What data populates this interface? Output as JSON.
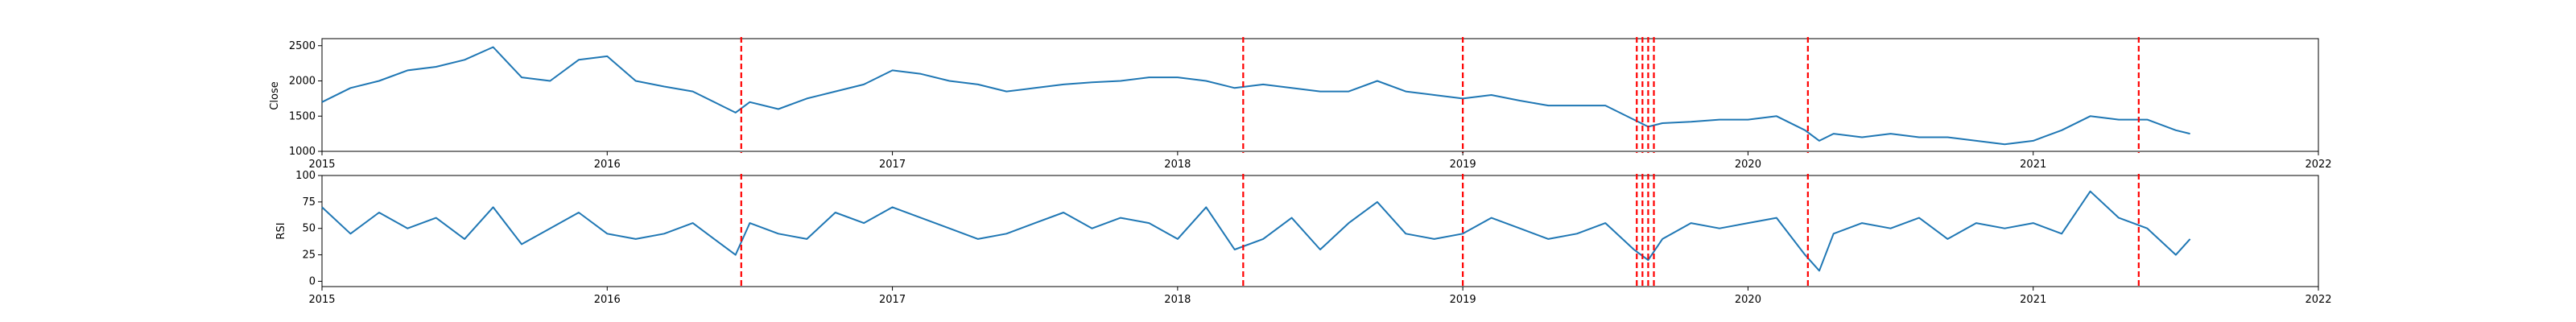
{
  "chart_data": [
    {
      "type": "line",
      "title": "",
      "xlabel": "",
      "ylabel": "Close",
      "xlim": [
        2015.0,
        2022.0
      ],
      "ylim": [
        1000,
        2600
      ],
      "x_ticks": [
        "2015",
        "2016",
        "2017",
        "2018",
        "2019",
        "2020",
        "2021",
        "2022"
      ],
      "y_ticks": [
        1000,
        1500,
        2000,
        2500
      ],
      "series": [
        {
          "color": "#1f77b4",
          "x": [
            2015.0,
            2015.1,
            2015.2,
            2015.3,
            2015.4,
            2015.5,
            2015.6,
            2015.7,
            2015.8,
            2015.9,
            2016.0,
            2016.1,
            2016.2,
            2016.3,
            2016.4,
            2016.45,
            2016.5,
            2016.6,
            2016.7,
            2016.8,
            2016.9,
            2017.0,
            2017.1,
            2017.2,
            2017.3,
            2017.4,
            2017.5,
            2017.6,
            2017.7,
            2017.8,
            2017.9,
            2018.0,
            2018.1,
            2018.2,
            2018.3,
            2018.4,
            2018.5,
            2018.6,
            2018.7,
            2018.8,
            2018.9,
            2019.0,
            2019.1,
            2019.2,
            2019.3,
            2019.4,
            2019.5,
            2019.6,
            2019.65,
            2019.7,
            2019.8,
            2019.9,
            2020.0,
            2020.1,
            2020.2,
            2020.25,
            2020.3,
            2020.4,
            2020.5,
            2020.6,
            2020.7,
            2020.8,
            2020.9,
            2021.0,
            2021.1,
            2021.2,
            2021.3,
            2021.4,
            2021.5,
            2021.55
          ],
          "y": [
            1700,
            1900,
            2000,
            2150,
            2200,
            2300,
            2480,
            2050,
            2000,
            2300,
            2350,
            2000,
            1920,
            1850,
            1650,
            1550,
            1700,
            1600,
            1750,
            1850,
            1950,
            2150,
            2100,
            2000,
            1950,
            1850,
            1900,
            1950,
            1980,
            2000,
            2050,
            2050,
            2000,
            1900,
            1950,
            1900,
            1850,
            1850,
            2000,
            1850,
            1800,
            1750,
            1800,
            1720,
            1650,
            1650,
            1650,
            1450,
            1350,
            1400,
            1420,
            1450,
            1450,
            1500,
            1300,
            1150,
            1250,
            1200,
            1250,
            1200,
            1200,
            1150,
            1100,
            1150,
            1300,
            1500,
            1450,
            1450,
            1300,
            1250
          ]
        }
      ],
      "vlines": {
        "color": "#ff0000",
        "style": "dashed",
        "x": [
          2016.47,
          2018.23,
          2019.0,
          2019.61,
          2019.63,
          2019.65,
          2019.67,
          2020.21,
          2021.37
        ]
      }
    },
    {
      "type": "line",
      "title": "",
      "xlabel": "",
      "ylabel": "RSI",
      "xlim": [
        2015.0,
        2022.0
      ],
      "ylim": [
        -5,
        100
      ],
      "x_ticks": [
        "2015",
        "2016",
        "2017",
        "2018",
        "2019",
        "2020",
        "2021",
        "2022"
      ],
      "y_ticks": [
        0,
        25,
        50,
        75,
        100
      ],
      "series": [
        {
          "color": "#1f77b4",
          "x": [
            2015.0,
            2015.1,
            2015.2,
            2015.3,
            2015.4,
            2015.5,
            2015.6,
            2015.7,
            2015.8,
            2015.9,
            2016.0,
            2016.1,
            2016.2,
            2016.3,
            2016.4,
            2016.45,
            2016.5,
            2016.6,
            2016.7,
            2016.8,
            2016.9,
            2017.0,
            2017.1,
            2017.2,
            2017.3,
            2017.4,
            2017.5,
            2017.6,
            2017.7,
            2017.8,
            2017.9,
            2018.0,
            2018.1,
            2018.2,
            2018.3,
            2018.4,
            2018.5,
            2018.6,
            2018.7,
            2018.8,
            2018.9,
            2019.0,
            2019.1,
            2019.2,
            2019.3,
            2019.4,
            2019.5,
            2019.6,
            2019.65,
            2019.7,
            2019.8,
            2019.9,
            2020.0,
            2020.1,
            2020.2,
            2020.25,
            2020.3,
            2020.4,
            2020.5,
            2020.6,
            2020.7,
            2020.8,
            2020.9,
            2021.0,
            2021.1,
            2021.2,
            2021.3,
            2021.4,
            2021.5,
            2021.55
          ],
          "y": [
            70,
            45,
            65,
            50,
            60,
            40,
            70,
            35,
            50,
            65,
            45,
            40,
            45,
            55,
            35,
            25,
            55,
            45,
            40,
            65,
            55,
            70,
            60,
            50,
            40,
            45,
            55,
            65,
            50,
            60,
            55,
            40,
            70,
            30,
            40,
            60,
            30,
            55,
            75,
            45,
            40,
            45,
            60,
            50,
            40,
            45,
            55,
            30,
            20,
            40,
            55,
            50,
            55,
            60,
            25,
            10,
            45,
            55,
            50,
            60,
            40,
            55,
            50,
            55,
            45,
            85,
            60,
            50,
            25,
            40
          ]
        }
      ],
      "vlines": {
        "color": "#ff0000",
        "style": "dashed",
        "x": [
          2016.47,
          2018.23,
          2019.0,
          2019.61,
          2019.63,
          2019.65,
          2019.67,
          2020.21,
          2021.37
        ]
      }
    }
  ]
}
